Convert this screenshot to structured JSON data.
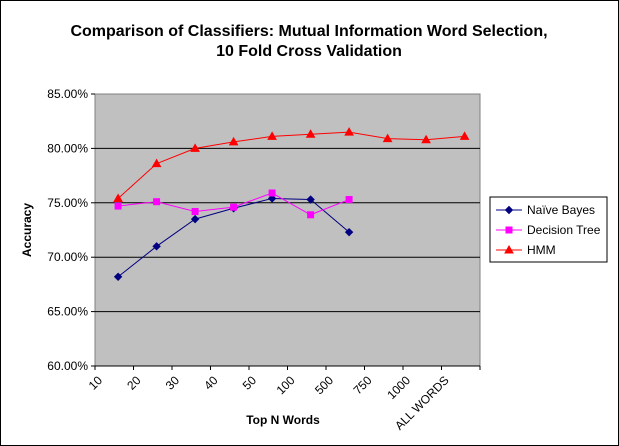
{
  "chart_data": {
    "type": "line",
    "title": "Comparison of Classifiers: Mutual Information Word Selection,",
    "subtitle": "10 Fold Cross Validation",
    "xlabel": "Top N Words",
    "ylabel": "Accuracy",
    "categories": [
      "10",
      "20",
      "30",
      "40",
      "50",
      "100",
      "500",
      "750",
      "1000",
      "ALL WORDS"
    ],
    "ylim": [
      0.6,
      0.85
    ],
    "yticks": [
      0.6,
      0.65,
      0.7,
      0.75,
      0.8,
      0.85
    ],
    "ytick_labels": [
      "60.00%",
      "65.00%",
      "70.00%",
      "75.00%",
      "80.00%",
      "85.00%"
    ],
    "grid": "horizontal",
    "legend_position": "right",
    "series": [
      {
        "name": "Naïve Bayes",
        "color": "#000080",
        "marker": "diamond",
        "x": [
          0.6,
          1.6,
          2.6,
          3.6,
          4.6,
          5.6,
          6.6
        ],
        "values": [
          0.682,
          0.71,
          0.735,
          0.745,
          0.754,
          0.753,
          0.723
        ]
      },
      {
        "name": "Decision Tree",
        "color": "#ff00ff",
        "marker": "square",
        "x": [
          0.6,
          1.6,
          2.6,
          3.6,
          4.6,
          5.6,
          6.6
        ],
        "values": [
          0.747,
          0.751,
          0.742,
          0.746,
          0.759,
          0.739,
          0.753
        ]
      },
      {
        "name": "HMM",
        "color": "#ff0000",
        "marker": "triangle",
        "x": [
          0.6,
          1.6,
          2.6,
          3.6,
          4.6,
          5.6,
          6.6,
          7.6,
          8.6,
          9.6
        ],
        "values": [
          0.754,
          0.786,
          0.8,
          0.806,
          0.811,
          0.813,
          0.815,
          0.809,
          0.808,
          0.811
        ]
      }
    ],
    "plot_background": "#c0c0c0"
  }
}
